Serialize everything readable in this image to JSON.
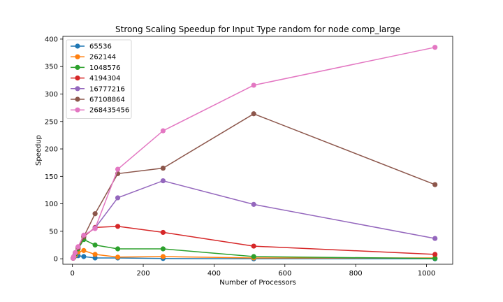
{
  "chart_data": {
    "type": "line",
    "title": "Strong Scaling Speedup for Input Type random for node comp_large",
    "xlabel": "Number of Processors",
    "ylabel": "Speedup",
    "xlim": [
      -27,
      1074
    ],
    "ylim": [
      -10,
      405
    ],
    "xticks": [
      0,
      200,
      400,
      600,
      800,
      1000
    ],
    "yticks": [
      0,
      50,
      100,
      150,
      200,
      250,
      300,
      350,
      400
    ],
    "grid": false,
    "legend_position": "top-left",
    "x": [
      2,
      4,
      8,
      16,
      32,
      64,
      128,
      256,
      512,
      1024
    ],
    "series": [
      {
        "name": "65536",
        "color": "#1f77b4",
        "values": [
          1,
          2.5,
          5,
          5.5,
          4,
          1.5,
          1.5,
          0.5,
          0,
          0
        ]
      },
      {
        "name": "262144",
        "color": "#ff7f0e",
        "values": [
          1,
          2.5,
          6,
          12,
          15,
          8,
          3,
          4,
          1.5,
          1.5
        ]
      },
      {
        "name": "1048576",
        "color": "#2ca02c",
        "values": [
          1,
          3,
          9,
          18,
          35,
          25,
          18,
          18,
          4,
          0.5
        ]
      },
      {
        "name": "4194304",
        "color": "#d62728",
        "values": [
          1,
          4,
          11,
          20,
          40,
          57,
          59,
          48,
          23,
          8
        ]
      },
      {
        "name": "16777216",
        "color": "#9467bd",
        "values": [
          1,
          4,
          11,
          21,
          42,
          56,
          111,
          142,
          99,
          37
        ]
      },
      {
        "name": "67108864",
        "color": "#8c564b",
        "values": [
          1,
          4,
          11,
          21,
          40,
          82,
          155,
          165,
          264,
          135
        ]
      },
      {
        "name": "268435456",
        "color": "#e377c2",
        "values": [
          1,
          4,
          11,
          22,
          43,
          55,
          163,
          233,
          316,
          385
        ]
      }
    ]
  }
}
